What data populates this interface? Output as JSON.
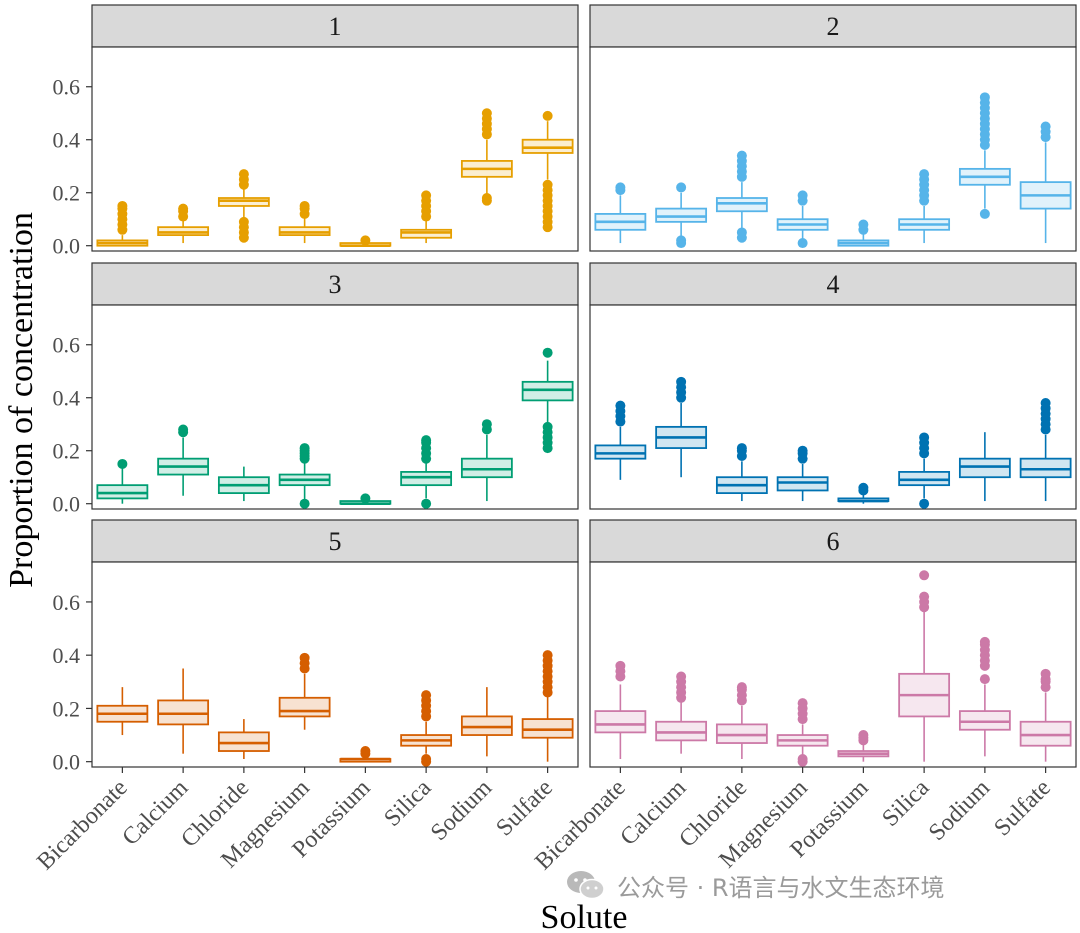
{
  "chart_data": {
    "type": "boxplot",
    "ylabel": "Proportion of concentration",
    "xlabel": "Solute",
    "ylim": [
      -0.02,
      0.75
    ],
    "yticks": [
      0.0,
      0.2,
      0.4,
      0.6
    ],
    "ytick_labels": [
      "0.0",
      "0.2",
      "0.4",
      "0.6"
    ],
    "categories": [
      "Bicarbonate",
      "Calcium",
      "Chloride",
      "Magnesium",
      "Potassium",
      "Silica",
      "Sodium",
      "Sulfate"
    ],
    "panels": [
      {
        "label": "1",
        "color": "#E69F00",
        "boxes": [
          {
            "wlo": 0.0,
            "q1": 0.0,
            "med": 0.01,
            "q3": 0.02,
            "whi": 0.04,
            "outliers": [
              0.06,
              0.08,
              0.1,
              0.12,
              0.14,
              0.15
            ]
          },
          {
            "wlo": 0.01,
            "q1": 0.04,
            "med": 0.05,
            "q3": 0.07,
            "whi": 0.1,
            "outliers": [
              0.11,
              0.13,
              0.14
            ]
          },
          {
            "wlo": 0.1,
            "q1": 0.15,
            "med": 0.17,
            "q3": 0.18,
            "whi": 0.22,
            "outliers": [
              0.03,
              0.05,
              0.07,
              0.09,
              0.23,
              0.25,
              0.27
            ]
          },
          {
            "wlo": 0.01,
            "q1": 0.04,
            "med": 0.05,
            "q3": 0.07,
            "whi": 0.11,
            "outliers": [
              0.12,
              0.14,
              0.15
            ]
          },
          {
            "wlo": 0.0,
            "q1": 0.0,
            "med": 0.0,
            "q3": 0.01,
            "whi": 0.01,
            "outliers": [
              0.02
            ]
          },
          {
            "wlo": 0.01,
            "q1": 0.03,
            "med": 0.05,
            "q3": 0.06,
            "whi": 0.1,
            "outliers": [
              0.11,
              0.13,
              0.15,
              0.17,
              0.19
            ]
          },
          {
            "wlo": 0.19,
            "q1": 0.26,
            "med": 0.29,
            "q3": 0.32,
            "whi": 0.4,
            "outliers": [
              0.17,
              0.18,
              0.42,
              0.44,
              0.46,
              0.48,
              0.5
            ]
          },
          {
            "wlo": 0.25,
            "q1": 0.35,
            "med": 0.37,
            "q3": 0.4,
            "whi": 0.47,
            "outliers": [
              0.07,
              0.09,
              0.11,
              0.13,
              0.15,
              0.17,
              0.19,
              0.21,
              0.23,
              0.49
            ]
          }
        ]
      },
      {
        "label": "2",
        "color": "#56B4E9",
        "boxes": [
          {
            "wlo": 0.01,
            "q1": 0.06,
            "med": 0.09,
            "q3": 0.12,
            "whi": 0.19,
            "outliers": [
              0.21,
              0.22
            ]
          },
          {
            "wlo": 0.03,
            "q1": 0.09,
            "med": 0.11,
            "q3": 0.14,
            "whi": 0.2,
            "outliers": [
              0.01,
              0.02,
              0.22
            ]
          },
          {
            "wlo": 0.06,
            "q1": 0.13,
            "med": 0.16,
            "q3": 0.18,
            "whi": 0.24,
            "outliers": [
              0.03,
              0.05,
              0.26,
              0.28,
              0.3,
              0.32,
              0.34
            ]
          },
          {
            "wlo": 0.02,
            "q1": 0.06,
            "med": 0.08,
            "q3": 0.1,
            "whi": 0.15,
            "outliers": [
              0.01,
              0.17,
              0.19
            ]
          },
          {
            "wlo": 0.0,
            "q1": 0.0,
            "med": 0.01,
            "q3": 0.02,
            "whi": 0.05,
            "outliers": [
              0.06,
              0.08
            ]
          },
          {
            "wlo": 0.01,
            "q1": 0.06,
            "med": 0.08,
            "q3": 0.1,
            "whi": 0.15,
            "outliers": [
              0.17,
              0.19,
              0.21,
              0.23,
              0.25,
              0.27
            ]
          },
          {
            "wlo": 0.14,
            "q1": 0.23,
            "med": 0.26,
            "q3": 0.29,
            "whi": 0.36,
            "outliers": [
              0.12,
              0.38,
              0.4,
              0.42,
              0.44,
              0.46,
              0.48,
              0.5,
              0.52,
              0.54,
              0.56
            ]
          },
          {
            "wlo": 0.01,
            "q1": 0.14,
            "med": 0.19,
            "q3": 0.24,
            "whi": 0.39,
            "outliers": [
              0.41,
              0.43,
              0.45
            ]
          }
        ]
      },
      {
        "label": "3",
        "color": "#009E73",
        "boxes": [
          {
            "wlo": 0.0,
            "q1": 0.02,
            "med": 0.04,
            "q3": 0.07,
            "whi": 0.14,
            "outliers": [
              0.15
            ]
          },
          {
            "wlo": 0.03,
            "q1": 0.11,
            "med": 0.14,
            "q3": 0.17,
            "whi": 0.25,
            "outliers": [
              0.27,
              0.28
            ]
          },
          {
            "wlo": 0.01,
            "q1": 0.04,
            "med": 0.07,
            "q3": 0.1,
            "whi": 0.14,
            "outliers": []
          },
          {
            "wlo": 0.01,
            "q1": 0.07,
            "med": 0.09,
            "q3": 0.11,
            "whi": 0.16,
            "outliers": [
              0.0,
              0.17,
              0.18,
              0.19,
              0.2,
              0.21
            ]
          },
          {
            "wlo": 0.0,
            "q1": 0.0,
            "med": 0.0,
            "q3": 0.01,
            "whi": 0.01,
            "outliers": [
              0.02
            ]
          },
          {
            "wlo": 0.02,
            "q1": 0.07,
            "med": 0.1,
            "q3": 0.12,
            "whi": 0.16,
            "outliers": [
              0.0,
              0.17,
              0.19,
              0.21,
              0.23,
              0.24
            ]
          },
          {
            "wlo": 0.01,
            "q1": 0.1,
            "med": 0.13,
            "q3": 0.17,
            "whi": 0.26,
            "outliers": [
              0.28,
              0.3
            ]
          },
          {
            "wlo": 0.3,
            "q1": 0.39,
            "med": 0.43,
            "q3": 0.46,
            "whi": 0.54,
            "outliers": [
              0.21,
              0.23,
              0.25,
              0.27,
              0.29,
              0.57
            ]
          }
        ]
      },
      {
        "label": "4",
        "color": "#0072B2",
        "boxes": [
          {
            "wlo": 0.09,
            "q1": 0.17,
            "med": 0.19,
            "q3": 0.22,
            "whi": 0.29,
            "outliers": [
              0.31,
              0.33,
              0.35,
              0.37
            ]
          },
          {
            "wlo": 0.1,
            "q1": 0.21,
            "med": 0.25,
            "q3": 0.29,
            "whi": 0.38,
            "outliers": [
              0.4,
              0.42,
              0.44,
              0.46
            ]
          },
          {
            "wlo": 0.01,
            "q1": 0.04,
            "med": 0.07,
            "q3": 0.1,
            "whi": 0.16,
            "outliers": [
              0.18,
              0.2,
              0.21
            ]
          },
          {
            "wlo": 0.01,
            "q1": 0.05,
            "med": 0.08,
            "q3": 0.1,
            "whi": 0.15,
            "outliers": [
              0.17,
              0.19,
              0.2
            ]
          },
          {
            "wlo": 0.0,
            "q1": 0.01,
            "med": 0.01,
            "q3": 0.02,
            "whi": 0.04,
            "outliers": [
              0.05,
              0.06
            ]
          },
          {
            "wlo": 0.02,
            "q1": 0.07,
            "med": 0.09,
            "q3": 0.12,
            "whi": 0.17,
            "outliers": [
              0.0,
              0.19,
              0.21,
              0.23,
              0.25
            ]
          },
          {
            "wlo": 0.01,
            "q1": 0.1,
            "med": 0.14,
            "q3": 0.17,
            "whi": 0.27,
            "outliers": []
          },
          {
            "wlo": 0.01,
            "q1": 0.1,
            "med": 0.13,
            "q3": 0.17,
            "whi": 0.26,
            "outliers": [
              0.28,
              0.3,
              0.32,
              0.34,
              0.36,
              0.38
            ]
          }
        ]
      },
      {
        "label": "5",
        "color": "#D55E00",
        "boxes": [
          {
            "wlo": 0.1,
            "q1": 0.15,
            "med": 0.18,
            "q3": 0.21,
            "whi": 0.28,
            "outliers": []
          },
          {
            "wlo": 0.03,
            "q1": 0.14,
            "med": 0.18,
            "q3": 0.23,
            "whi": 0.35,
            "outliers": []
          },
          {
            "wlo": 0.01,
            "q1": 0.04,
            "med": 0.07,
            "q3": 0.11,
            "whi": 0.16,
            "outliers": []
          },
          {
            "wlo": 0.12,
            "q1": 0.17,
            "med": 0.19,
            "q3": 0.24,
            "whi": 0.33,
            "outliers": [
              0.35,
              0.37,
              0.39
            ]
          },
          {
            "wlo": 0.0,
            "q1": 0.0,
            "med": 0.01,
            "q3": 0.01,
            "whi": 0.02,
            "outliers": [
              0.03,
              0.04
            ]
          },
          {
            "wlo": 0.03,
            "q1": 0.06,
            "med": 0.08,
            "q3": 0.1,
            "whi": 0.15,
            "outliers": [
              0.0,
              0.01,
              0.17,
              0.19,
              0.21,
              0.23,
              0.25
            ]
          },
          {
            "wlo": 0.02,
            "q1": 0.1,
            "med": 0.13,
            "q3": 0.17,
            "whi": 0.28,
            "outliers": []
          },
          {
            "wlo": 0.0,
            "q1": 0.09,
            "med": 0.12,
            "q3": 0.16,
            "whi": 0.25,
            "outliers": [
              0.26,
              0.28,
              0.3,
              0.32,
              0.34,
              0.36,
              0.38,
              0.4
            ]
          }
        ]
      },
      {
        "label": "6",
        "color": "#CC79A7",
        "boxes": [
          {
            "wlo": 0.01,
            "q1": 0.11,
            "med": 0.14,
            "q3": 0.19,
            "whi": 0.29,
            "outliers": [
              0.32,
              0.34,
              0.36
            ]
          },
          {
            "wlo": 0.03,
            "q1": 0.08,
            "med": 0.11,
            "q3": 0.15,
            "whi": 0.23,
            "outliers": [
              0.24,
              0.26,
              0.28,
              0.3,
              0.32
            ]
          },
          {
            "wlo": 0.01,
            "q1": 0.07,
            "med": 0.1,
            "q3": 0.14,
            "whi": 0.21,
            "outliers": [
              0.23,
              0.25,
              0.27,
              0.28
            ]
          },
          {
            "wlo": 0.02,
            "q1": 0.06,
            "med": 0.08,
            "q3": 0.1,
            "whi": 0.14,
            "outliers": [
              0.0,
              0.01,
              0.16,
              0.18,
              0.2,
              0.22
            ]
          },
          {
            "wlo": 0.0,
            "q1": 0.02,
            "med": 0.03,
            "q3": 0.04,
            "whi": 0.07,
            "outliers": [
              0.08,
              0.09,
              0.1
            ]
          },
          {
            "wlo": 0.0,
            "q1": 0.17,
            "med": 0.25,
            "q3": 0.33,
            "whi": 0.57,
            "outliers": [
              0.58,
              0.6,
              0.62,
              0.7
            ]
          },
          {
            "wlo": 0.02,
            "q1": 0.12,
            "med": 0.15,
            "q3": 0.19,
            "whi": 0.29,
            "outliers": [
              0.31,
              0.36,
              0.38,
              0.4,
              0.42,
              0.44,
              0.45
            ]
          },
          {
            "wlo": 0.0,
            "q1": 0.06,
            "med": 0.1,
            "q3": 0.15,
            "whi": 0.26,
            "outliers": [
              0.28,
              0.3,
              0.31,
              0.33
            ]
          }
        ]
      }
    ]
  },
  "watermark": {
    "text": "公众号 · R语言与水文生态环境",
    "icon": "wechat-icon"
  }
}
